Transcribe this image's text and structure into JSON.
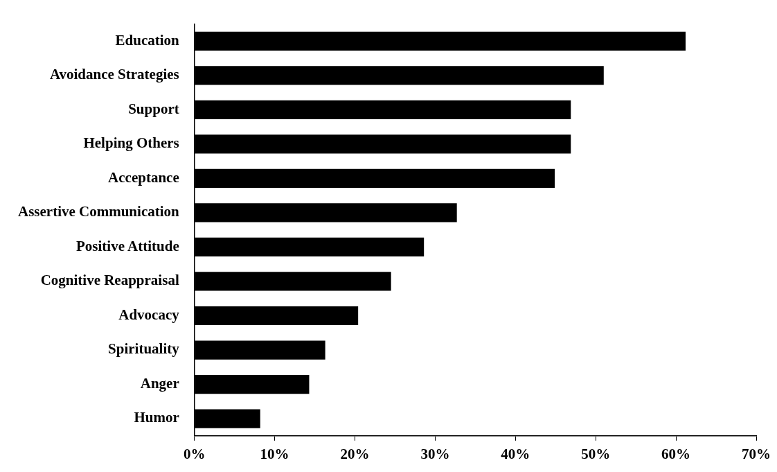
{
  "chart_data": {
    "type": "bar",
    "orientation": "horizontal",
    "categories": [
      "Education",
      "Avoidance Strategies",
      "Support",
      "Helping Others",
      "Acceptance",
      "Assertive Communication",
      "Positive Attitude",
      "Cognitive Reappraisal",
      "Advocacy",
      "Spirituality",
      "Anger",
      "Humor"
    ],
    "values": [
      61.2,
      51.0,
      46.9,
      46.9,
      44.9,
      32.7,
      28.6,
      24.5,
      20.4,
      16.3,
      14.3,
      8.2
    ],
    "color": "#000000",
    "xlim": [
      0,
      70
    ],
    "xticks": [
      {
        "value": 0,
        "label": "0%"
      },
      {
        "value": 10,
        "label": "10%"
      },
      {
        "value": 20,
        "label": "20%"
      },
      {
        "value": 30,
        "label": "30%"
      },
      {
        "value": 40,
        "label": "40%"
      },
      {
        "value": 50,
        "label": "50%"
      },
      {
        "value": 60,
        "label": "60%"
      },
      {
        "value": 70,
        "label": "70%"
      }
    ],
    "grid": false,
    "legend": false
  }
}
